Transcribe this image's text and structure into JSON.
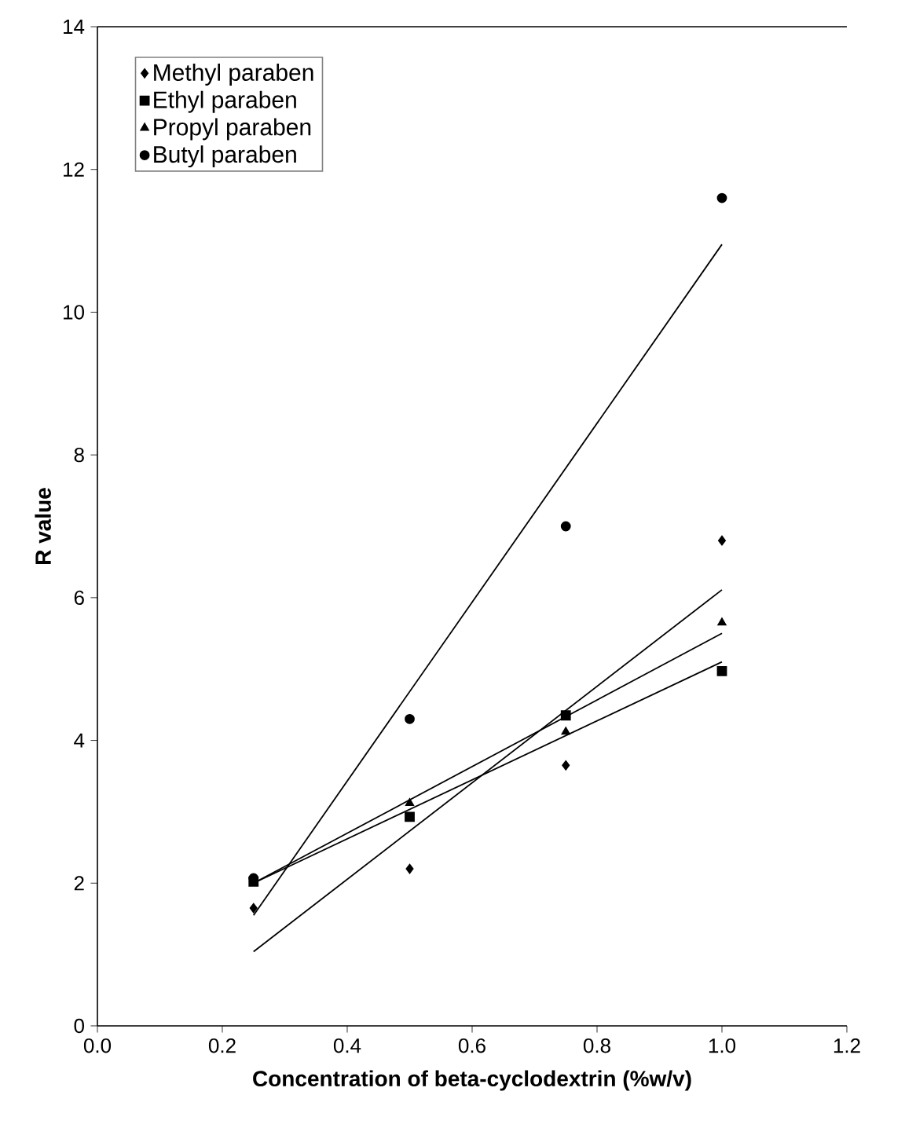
{
  "chart_data": {
    "type": "scatter",
    "xlabel": "Concentration of beta-cyclodextrin (%w/v)",
    "ylabel": "R value",
    "xlim": [
      0,
      1.2
    ],
    "ylim": [
      0,
      14
    ],
    "xticks": [
      {
        "value": 0,
        "label": "0.0"
      },
      {
        "value": 0.2,
        "label": "0.2"
      },
      {
        "value": 0.4,
        "label": "0.4"
      },
      {
        "value": 0.6,
        "label": "0.6"
      },
      {
        "value": 0.8,
        "label": "0.8"
      },
      {
        "value": 1.0,
        "label": "1.0"
      },
      {
        "value": 1.2,
        "label": "1.2"
      }
    ],
    "yticks": [
      0,
      2,
      4,
      6,
      8,
      10,
      12,
      14
    ],
    "grid": false,
    "legend": "top left",
    "series": [
      {
        "name": "Methyl paraben",
        "color": "#000000",
        "marker": "diamond",
        "x": [
          0.25,
          0.5,
          0.75,
          1.0
        ],
        "values": [
          1.65,
          2.2,
          3.65,
          6.8
        ]
      },
      {
        "name": "Ethyl paraben",
        "color": "#000000",
        "marker": "square",
        "x": [
          0.25,
          0.5,
          0.75,
          1.0
        ],
        "values": [
          2.02,
          2.93,
          4.35,
          4.97
        ]
      },
      {
        "name": "Propyl paraben",
        "color": "#000000",
        "marker": "triangle",
        "x": [
          0.5,
          0.75,
          1.0
        ],
        "values": [
          3.12,
          4.12,
          5.65
        ]
      },
      {
        "name": "Butyl paraben",
        "color": "#000000",
        "marker": "circle",
        "x": [
          0.25,
          0.5,
          0.75,
          1.0
        ],
        "values": [
          2.07,
          4.3,
          7.0,
          11.6
        ]
      },
      {
        "type": "line",
        "color": "#000000",
        "marker": "none",
        "x": [
          0.25,
          1.0
        ],
        "values": [
          1.04,
          6.11
        ]
      },
      {
        "type": "line",
        "color": "#000000",
        "marker": "none",
        "x": [
          0.25,
          1.0
        ],
        "values": [
          2.0,
          5.1
        ]
      },
      {
        "type": "line",
        "color": "#000000",
        "marker": "none",
        "x": [
          0.25,
          1.0
        ],
        "values": [
          2.0,
          5.5
        ]
      },
      {
        "type": "line",
        "color": "#000000",
        "marker": "none",
        "x": [
          0.25,
          1.0
        ],
        "values": [
          1.55,
          10.95
        ]
      }
    ]
  }
}
